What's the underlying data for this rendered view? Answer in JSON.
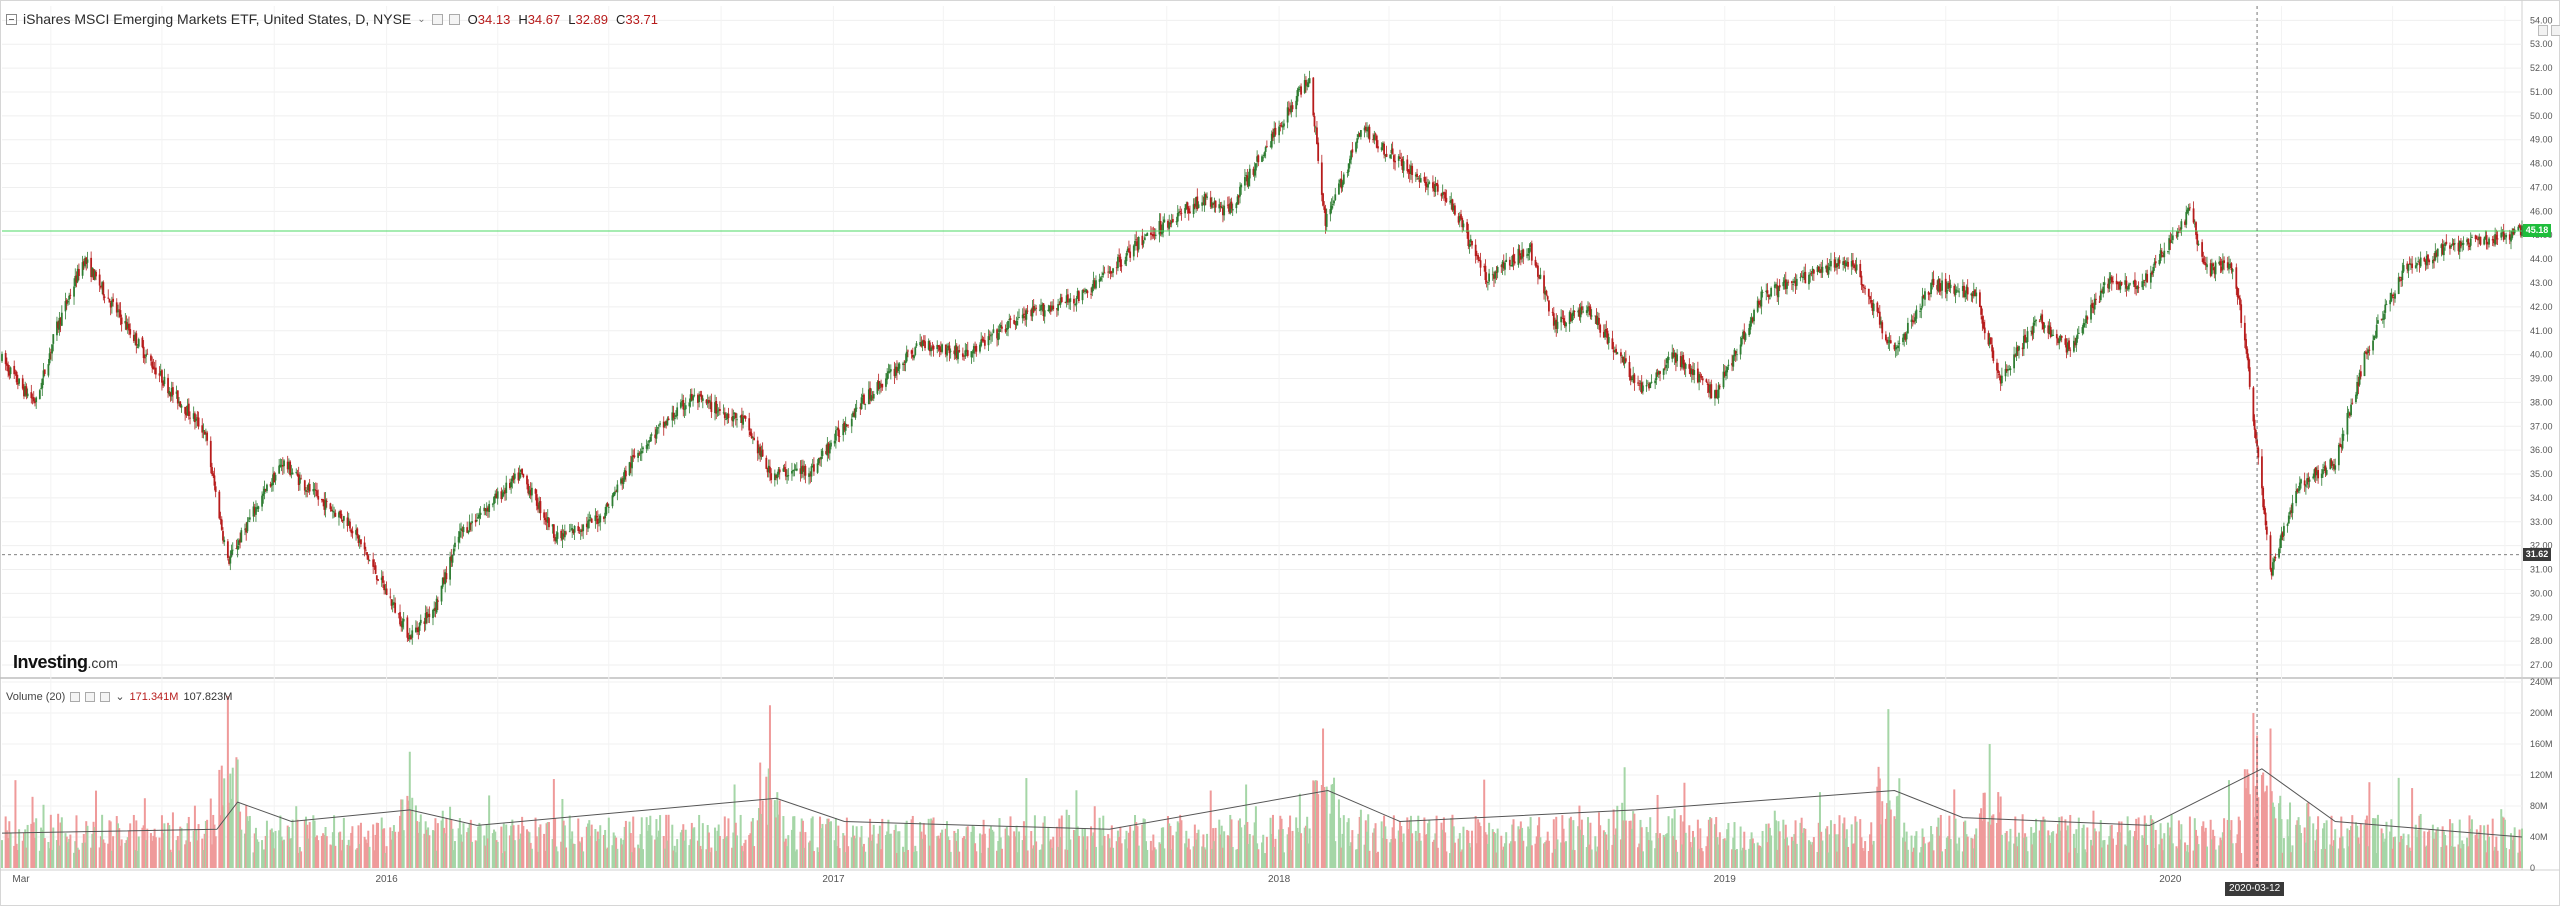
{
  "header": {
    "instrument": "iShares MSCI Emerging Markets ETF, United States, D, NYSE",
    "ohlc": [
      {
        "label": "O",
        "value": "34.13"
      },
      {
        "label": "H",
        "value": "34.67"
      },
      {
        "label": "L",
        "value": "32.89"
      },
      {
        "label": "C",
        "value": "33.71"
      }
    ]
  },
  "volume_legend": {
    "label": "Volume (20)",
    "value1": "171.341M",
    "value2": "107.823M"
  },
  "brand": {
    "name": "Investing",
    "suffix": ".com"
  },
  "price_markers": {
    "last": "45.18",
    "crosshair": "31.62"
  },
  "crosshair_date": "2020-03-12",
  "colors": {
    "up": "#2e7d32",
    "down": "#b71c1c",
    "vol_up": "#a5d6a7",
    "vol_down": "#ef9a9a",
    "last_line": "#4cd964",
    "crosshair": "#555555",
    "vol_ma": "#555555"
  },
  "chart_data": [
    {
      "type": "candlestick",
      "title": "iShares MSCI Emerging Markets ETF, United States, D, NYSE",
      "ylim": [
        26.5,
        54.6
      ],
      "y_ticks": [
        "27.00",
        "28.00",
        "29.00",
        "30.00",
        "31.00",
        "32.00",
        "33.00",
        "34.00",
        "35.00",
        "36.00",
        "37.00",
        "38.00",
        "39.00",
        "40.00",
        "41.00",
        "42.00",
        "43.00",
        "44.00",
        "45.00",
        "46.00",
        "47.00",
        "48.00",
        "49.00",
        "50.00",
        "51.00",
        "52.00",
        "53.00",
        "54.00"
      ],
      "x_labels": [
        "Mar",
        "2016",
        "2017",
        "2018",
        "2019",
        "2020"
      ],
      "x_label_dates": [
        "2015-03-01",
        "2016-01-01",
        "2017-01-01",
        "2018-01-01",
        "2019-01-01",
        "2020-01-01"
      ],
      "x_range": [
        "2015-02-20",
        "2020-10-15"
      ],
      "trend_close": [
        {
          "date": "2015-02-20",
          "close": 39.8
        },
        {
          "date": "2015-03-10",
          "close": 38.5
        },
        {
          "date": "2015-03-20",
          "close": 38.0
        },
        {
          "date": "2015-04-05",
          "close": 41.0
        },
        {
          "date": "2015-04-28",
          "close": 44.0
        },
        {
          "date": "2015-05-20",
          "close": 42.2
        },
        {
          "date": "2015-06-15",
          "close": 40.2
        },
        {
          "date": "2015-07-08",
          "close": 38.5
        },
        {
          "date": "2015-08-05",
          "close": 36.8
        },
        {
          "date": "2015-08-24",
          "close": 31.3
        },
        {
          "date": "2015-09-15",
          "close": 33.5
        },
        {
          "date": "2015-10-08",
          "close": 35.5
        },
        {
          "date": "2015-11-05",
          "close": 34.0
        },
        {
          "date": "2015-12-01",
          "close": 33.0
        },
        {
          "date": "2016-01-20",
          "close": 28.2
        },
        {
          "date": "2016-02-10",
          "close": 29.5
        },
        {
          "date": "2016-03-01",
          "close": 32.5
        },
        {
          "date": "2016-04-20",
          "close": 35.0
        },
        {
          "date": "2016-05-20",
          "close": 32.3
        },
        {
          "date": "2016-06-25",
          "close": 33.2
        },
        {
          "date": "2016-07-25",
          "close": 36.0
        },
        {
          "date": "2016-09-07",
          "close": 38.2
        },
        {
          "date": "2016-10-20",
          "close": 37.2
        },
        {
          "date": "2016-11-10",
          "close": 35.0
        },
        {
          "date": "2016-12-15",
          "close": 35.2
        },
        {
          "date": "2017-01-20",
          "close": 37.8
        },
        {
          "date": "2017-03-15",
          "close": 40.5
        },
        {
          "date": "2017-04-20",
          "close": 40.0
        },
        {
          "date": "2017-06-01",
          "close": 41.5
        },
        {
          "date": "2017-07-25",
          "close": 42.5
        },
        {
          "date": "2017-09-15",
          "close": 45.0
        },
        {
          "date": "2017-10-30",
          "close": 46.5
        },
        {
          "date": "2017-11-20",
          "close": 46.0
        },
        {
          "date": "2018-01-26",
          "close": 51.7
        },
        {
          "date": "2018-02-08",
          "close": 45.5
        },
        {
          "date": "2018-03-10",
          "close": 49.5
        },
        {
          "date": "2018-04-15",
          "close": 47.8
        },
        {
          "date": "2018-05-20",
          "close": 46.5
        },
        {
          "date": "2018-06-20",
          "close": 43.2
        },
        {
          "date": "2018-07-25",
          "close": 44.5
        },
        {
          "date": "2018-08-15",
          "close": 41.2
        },
        {
          "date": "2018-09-10",
          "close": 42.0
        },
        {
          "date": "2018-10-25",
          "close": 38.5
        },
        {
          "date": "2018-11-20",
          "close": 40.0
        },
        {
          "date": "2018-12-24",
          "close": 38.3
        },
        {
          "date": "2019-02-01",
          "close": 42.5
        },
        {
          "date": "2019-04-15",
          "close": 44.0
        },
        {
          "date": "2019-05-20",
          "close": 40.0
        },
        {
          "date": "2019-06-20",
          "close": 43.0
        },
        {
          "date": "2019-07-25",
          "close": 42.5
        },
        {
          "date": "2019-08-15",
          "close": 39.0
        },
        {
          "date": "2019-09-15",
          "close": 41.5
        },
        {
          "date": "2019-10-10",
          "close": 40.2
        },
        {
          "date": "2019-11-10",
          "close": 43.0
        },
        {
          "date": "2019-12-10",
          "close": 43.0
        },
        {
          "date": "2020-01-17",
          "close": 46.0
        },
        {
          "date": "2020-01-30",
          "close": 43.5
        },
        {
          "date": "2020-02-20",
          "close": 43.8
        },
        {
          "date": "2020-03-01",
          "close": 41.0
        },
        {
          "date": "2020-03-10",
          "close": 37.0
        },
        {
          "date": "2020-03-23",
          "close": 30.8
        },
        {
          "date": "2020-04-15",
          "close": 34.5
        },
        {
          "date": "2020-05-15",
          "close": 35.5
        },
        {
          "date": "2020-06-10",
          "close": 40.2
        },
        {
          "date": "2020-07-10",
          "close": 43.5
        },
        {
          "date": "2020-08-15",
          "close": 44.5
        },
        {
          "date": "2020-09-15",
          "close": 44.8
        },
        {
          "date": "2020-10-15",
          "close": 45.18
        }
      ],
      "last_price": 45.18,
      "crosshair_price": 31.62,
      "crosshair_date": "2020-03-12"
    },
    {
      "type": "bar",
      "title": "Volume (20)",
      "ylim": [
        0,
        240
      ],
      "unit": "M",
      "y_ticks": [
        "0",
        "40M",
        "80M",
        "120M",
        "160M",
        "200M",
        "240M"
      ],
      "baseline_millions": 55,
      "spikes": [
        {
          "date": "2015-08-24",
          "value": 222
        },
        {
          "date": "2015-09-01",
          "value": 140
        },
        {
          "date": "2016-11-10",
          "value": 210
        },
        {
          "date": "2016-01-20",
          "value": 150
        },
        {
          "date": "2018-02-06",
          "value": 180
        },
        {
          "date": "2018-10-11",
          "value": 130
        },
        {
          "date": "2019-05-15",
          "value": 205
        },
        {
          "date": "2019-08-06",
          "value": 160
        },
        {
          "date": "2020-03-09",
          "value": 200
        },
        {
          "date": "2020-03-12",
          "value": 171
        },
        {
          "date": "2020-03-23",
          "value": 180
        }
      ],
      "ma20_points": [
        {
          "date": "2015-02-20",
          "value": 45
        },
        {
          "date": "2015-08-15",
          "value": 50
        },
        {
          "date": "2015-09-01",
          "value": 85
        },
        {
          "date": "2015-10-15",
          "value": 60
        },
        {
          "date": "2016-01-20",
          "value": 75
        },
        {
          "date": "2016-03-15",
          "value": 55
        },
        {
          "date": "2016-11-15",
          "value": 90
        },
        {
          "date": "2017-01-10",
          "value": 60
        },
        {
          "date": "2017-08-15",
          "value": 50
        },
        {
          "date": "2018-02-10",
          "value": 100
        },
        {
          "date": "2018-04-10",
          "value": 60
        },
        {
          "date": "2018-10-20",
          "value": 75
        },
        {
          "date": "2019-05-20",
          "value": 100
        },
        {
          "date": "2019-07-15",
          "value": 65
        },
        {
          "date": "2019-12-15",
          "value": 55
        },
        {
          "date": "2020-03-16",
          "value": 128
        },
        {
          "date": "2020-05-15",
          "value": 60
        },
        {
          "date": "2020-10-15",
          "value": 40
        }
      ],
      "last_values": {
        "volume": "171.341M",
        "ma20": "107.823M"
      }
    }
  ]
}
